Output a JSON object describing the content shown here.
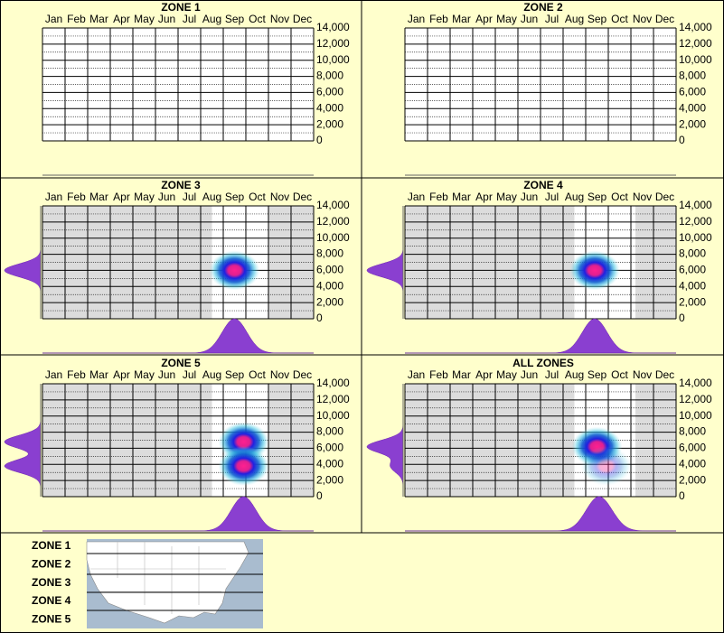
{
  "chart_data": [
    {
      "type": "heatmap",
      "title": "ZONE 1",
      "categories": [
        "Jan",
        "Feb",
        "Mar",
        "Apr",
        "May",
        "Jun",
        "Jul",
        "Aug",
        "Sep",
        "Oct",
        "Nov",
        "Dec"
      ],
      "ylim": [
        0,
        14000
      ],
      "yticks": [
        0,
        {
          "value": 2000,
          "label": "2,000"
        },
        {
          "value": 4000,
          "label": "4,000"
        },
        {
          "value": 6000,
          "label": "6,000"
        },
        {
          "value": 8000,
          "label": "8,000"
        },
        {
          "value": 10000,
          "label": "10,000"
        },
        {
          "value": 12000,
          "label": "12,000"
        },
        {
          "value": 14000,
          "label": "14,000"
        }
      ],
      "yminor": [
        1000,
        3000,
        5000,
        7000,
        9000,
        11000,
        13000
      ],
      "hotspots": {
        "x": [],
        "y": [],
        "weight": []
      }
    },
    {
      "type": "heatmap",
      "title": "ZONE 2",
      "categories": [
        "Jan",
        "Feb",
        "Mar",
        "Apr",
        "May",
        "Jun",
        "Jul",
        "Aug",
        "Sep",
        "Oct",
        "Nov",
        "Dec"
      ],
      "ylim": [
        0,
        14000
      ],
      "yticks": [
        0,
        {
          "value": 2000,
          "label": "2,000"
        },
        {
          "value": 4000,
          "label": "4,000"
        },
        {
          "value": 6000,
          "label": "6,000"
        },
        {
          "value": 8000,
          "label": "8,000"
        },
        {
          "value": 10000,
          "label": "10,000"
        },
        {
          "value": 12000,
          "label": "12,000"
        },
        {
          "value": 14000,
          "label": "14,000"
        }
      ],
      "yminor": [
        1000,
        3000,
        5000,
        7000,
        9000,
        11000,
        13000
      ],
      "hotspots": {
        "x": [],
        "y": [],
        "weight": []
      }
    },
    {
      "type": "heatmap",
      "title": "ZONE 3",
      "categories": [
        "Jan",
        "Feb",
        "Mar",
        "Apr",
        "May",
        "Jun",
        "Jul",
        "Aug",
        "Sep",
        "Oct",
        "Nov",
        "Dec"
      ],
      "ylim": [
        0,
        14000
      ],
      "yticks": [
        0,
        {
          "value": 2000,
          "label": "2,000"
        },
        {
          "value": 4000,
          "label": "4,000"
        },
        {
          "value": 6000,
          "label": "6,000"
        },
        {
          "value": 8000,
          "label": "8,000"
        },
        {
          "value": 10000,
          "label": "10,000"
        },
        {
          "value": 12000,
          "label": "12,000"
        },
        {
          "value": 14000,
          "label": "14,000"
        }
      ],
      "yminor": [
        1000,
        3000,
        5000,
        7000,
        9000,
        11000,
        13000
      ],
      "coverage": [
        7.5,
        10
      ],
      "hotspots": {
        "x": [
          8.5
        ],
        "y": [
          6000
        ],
        "weight": [
          1
        ]
      }
    },
    {
      "type": "heatmap",
      "title": "ZONE 4",
      "categories": [
        "Jan",
        "Feb",
        "Mar",
        "Apr",
        "May",
        "Jun",
        "Jul",
        "Aug",
        "Sep",
        "Oct",
        "Nov",
        "Dec"
      ],
      "ylim": [
        0,
        14000
      ],
      "yticks": [
        0,
        {
          "value": 2000,
          "label": "2,000"
        },
        {
          "value": 4000,
          "label": "4,000"
        },
        {
          "value": 6000,
          "label": "6,000"
        },
        {
          "value": 8000,
          "label": "8,000"
        },
        {
          "value": 10000,
          "label": "10,000"
        },
        {
          "value": 12000,
          "label": "12,000"
        },
        {
          "value": 14000,
          "label": "14,000"
        }
      ],
      "yminor": [
        1000,
        3000,
        5000,
        7000,
        9000,
        11000,
        13000
      ],
      "coverage": [
        7.5,
        10.2
      ],
      "hotspots": {
        "x": [
          8.4
        ],
        "y": [
          6000
        ],
        "weight": [
          1
        ]
      }
    },
    {
      "type": "heatmap",
      "title": "ZONE 5",
      "categories": [
        "Jan",
        "Feb",
        "Mar",
        "Apr",
        "May",
        "Jun",
        "Jul",
        "Aug",
        "Sep",
        "Oct",
        "Nov",
        "Dec"
      ],
      "ylim": [
        0,
        14000
      ],
      "yticks": [
        0,
        {
          "value": 2000,
          "label": "2,000"
        },
        {
          "value": 4000,
          "label": "4,000"
        },
        {
          "value": 6000,
          "label": "6,000"
        },
        {
          "value": 8000,
          "label": "8,000"
        },
        {
          "value": 10000,
          "label": "10,000"
        },
        {
          "value": 12000,
          "label": "12,000"
        },
        {
          "value": 14000,
          "label": "14,000"
        }
      ],
      "yminor": [
        1000,
        3000,
        5000,
        7000,
        9000,
        11000,
        13000
      ],
      "coverage": [
        7.5,
        10
      ],
      "hotspots": {
        "x": [
          8.9,
          8.9
        ],
        "y": [
          6800,
          3800
        ],
        "weight": [
          1,
          1
        ]
      }
    },
    {
      "type": "heatmap",
      "title": "ALL ZONES",
      "categories": [
        "Jan",
        "Feb",
        "Mar",
        "Apr",
        "May",
        "Jun",
        "Jul",
        "Aug",
        "Sep",
        "Oct",
        "Nov",
        "Dec"
      ],
      "ylim": [
        0,
        14000
      ],
      "yticks": [
        0,
        {
          "value": 2000,
          "label": "2,000"
        },
        {
          "value": 4000,
          "label": "4,000"
        },
        {
          "value": 6000,
          "label": "6,000"
        },
        {
          "value": 8000,
          "label": "8,000"
        },
        {
          "value": 10000,
          "label": "10,000"
        },
        {
          "value": 12000,
          "label": "12,000"
        },
        {
          "value": 14000,
          "label": "14,000"
        }
      ],
      "yminor": [
        1000,
        3000,
        5000,
        7000,
        9000,
        11000,
        13000
      ],
      "coverage": [
        7.5,
        10.2
      ],
      "hotspots": {
        "x": [
          8.5,
          8.9
        ],
        "y": [
          6200,
          3800
        ],
        "weight": [
          1,
          0.35
        ]
      }
    }
  ],
  "legend": {
    "zones": [
      "ZONE 1",
      "ZONE 2",
      "ZONE 3",
      "ZONE 4",
      "ZONE 5"
    ]
  }
}
